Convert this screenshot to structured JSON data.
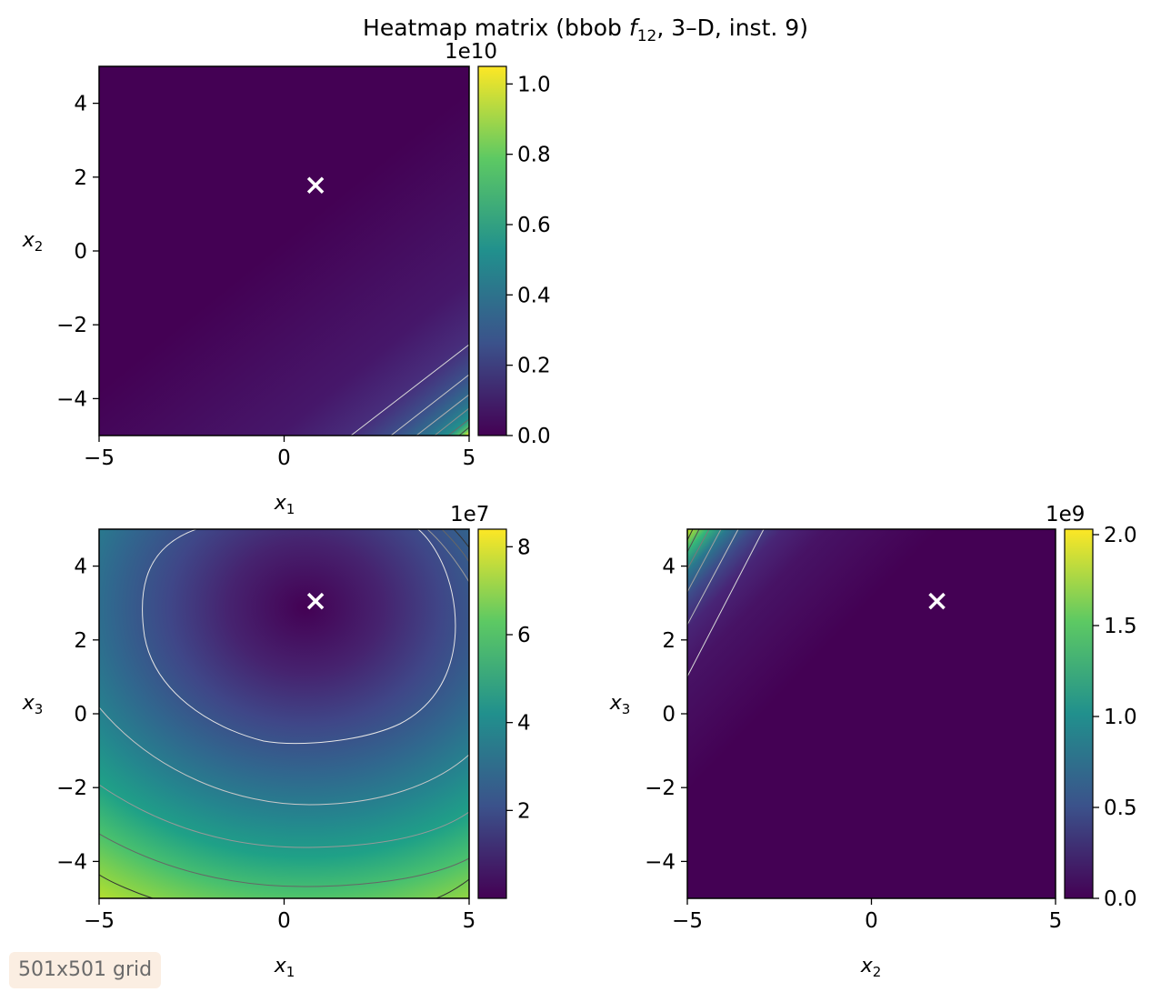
{
  "figure": {
    "title_main": "Heatmap matrix (bbob ",
    "title_f": "f",
    "title_sub": "12",
    "title_rest": ", 3–D, inst. 9)",
    "note": "501x501 grid"
  },
  "chart_data": [
    {
      "type": "heatmap",
      "pair": "x1-x2",
      "xlabel": "x",
      "xlabel_sub": "1",
      "ylabel": "x",
      "ylabel_sub": "2",
      "xlim": [
        -5,
        5
      ],
      "ylim": [
        -5,
        5
      ],
      "xticks": [
        -5,
        0,
        5
      ],
      "xtick_labels": [
        "−5",
        "0",
        "5"
      ],
      "yticks": [
        -4,
        -2,
        0,
        2,
        4
      ],
      "ytick_labels": [
        "−4",
        "−2",
        "0",
        "2",
        "4"
      ],
      "optimum": [
        0.85,
        1.78
      ],
      "colorbar": {
        "offset_label": "1e10",
        "range": [
          0,
          1.05
        ],
        "ticks": [
          0.0,
          0.2,
          0.4,
          0.6,
          0.8,
          1.0
        ],
        "tick_labels": [
          "0.0",
          "0.2",
          "0.4",
          "0.6",
          "0.8",
          "1.0"
        ]
      },
      "colormap": [
        "#440154",
        "#3b528b",
        "#21908d",
        "#5dc963",
        "#fde725"
      ],
      "contour_color": "#d9d9d9"
    },
    {
      "type": "heatmap",
      "pair": "x1-x3",
      "xlabel": "x",
      "xlabel_sub": "1",
      "ylabel": "x",
      "ylabel_sub": "3",
      "xlim": [
        -5,
        5
      ],
      "ylim": [
        -5,
        5
      ],
      "xticks": [
        -5,
        0,
        5
      ],
      "xtick_labels": [
        "−5",
        "0",
        "5"
      ],
      "yticks": [
        -4,
        -2,
        0,
        2,
        4
      ],
      "ytick_labels": [
        "−4",
        "−2",
        "0",
        "2",
        "4"
      ],
      "optimum": [
        0.85,
        3.05
      ],
      "colorbar": {
        "offset_label": "1e7",
        "range": [
          0,
          8.4
        ],
        "ticks": [
          2,
          4,
          6,
          8
        ],
        "tick_labels": [
          "2",
          "4",
          "6",
          "8"
        ]
      },
      "colormap": [
        "#440154",
        "#3b528b",
        "#21908d",
        "#5dc963",
        "#fde725"
      ],
      "contour_color": "#d9d9d9"
    },
    {
      "type": "heatmap",
      "pair": "x2-x3",
      "xlabel": "x",
      "xlabel_sub": "2",
      "ylabel": "x",
      "ylabel_sub": "3",
      "xlim": [
        -5,
        5
      ],
      "ylim": [
        -5,
        5
      ],
      "xticks": [
        -5,
        0,
        5
      ],
      "xtick_labels": [
        "−5",
        "0",
        "5"
      ],
      "yticks": [
        -4,
        -2,
        0,
        2,
        4
      ],
      "ytick_labels": [
        "−4",
        "−2",
        "0",
        "2",
        "4"
      ],
      "optimum": [
        1.78,
        3.05
      ],
      "colorbar": {
        "offset_label": "1e9",
        "range": [
          0,
          2.03
        ],
        "ticks": [
          0.0,
          0.5,
          1.0,
          1.5,
          2.0
        ],
        "tick_labels": [
          "0.0",
          "0.5",
          "1.0",
          "1.5",
          "2.0"
        ]
      },
      "colormap": [
        "#440154",
        "#3b528b",
        "#21908d",
        "#5dc963",
        "#fde725"
      ],
      "contour_color": "#d9d9d9"
    }
  ]
}
